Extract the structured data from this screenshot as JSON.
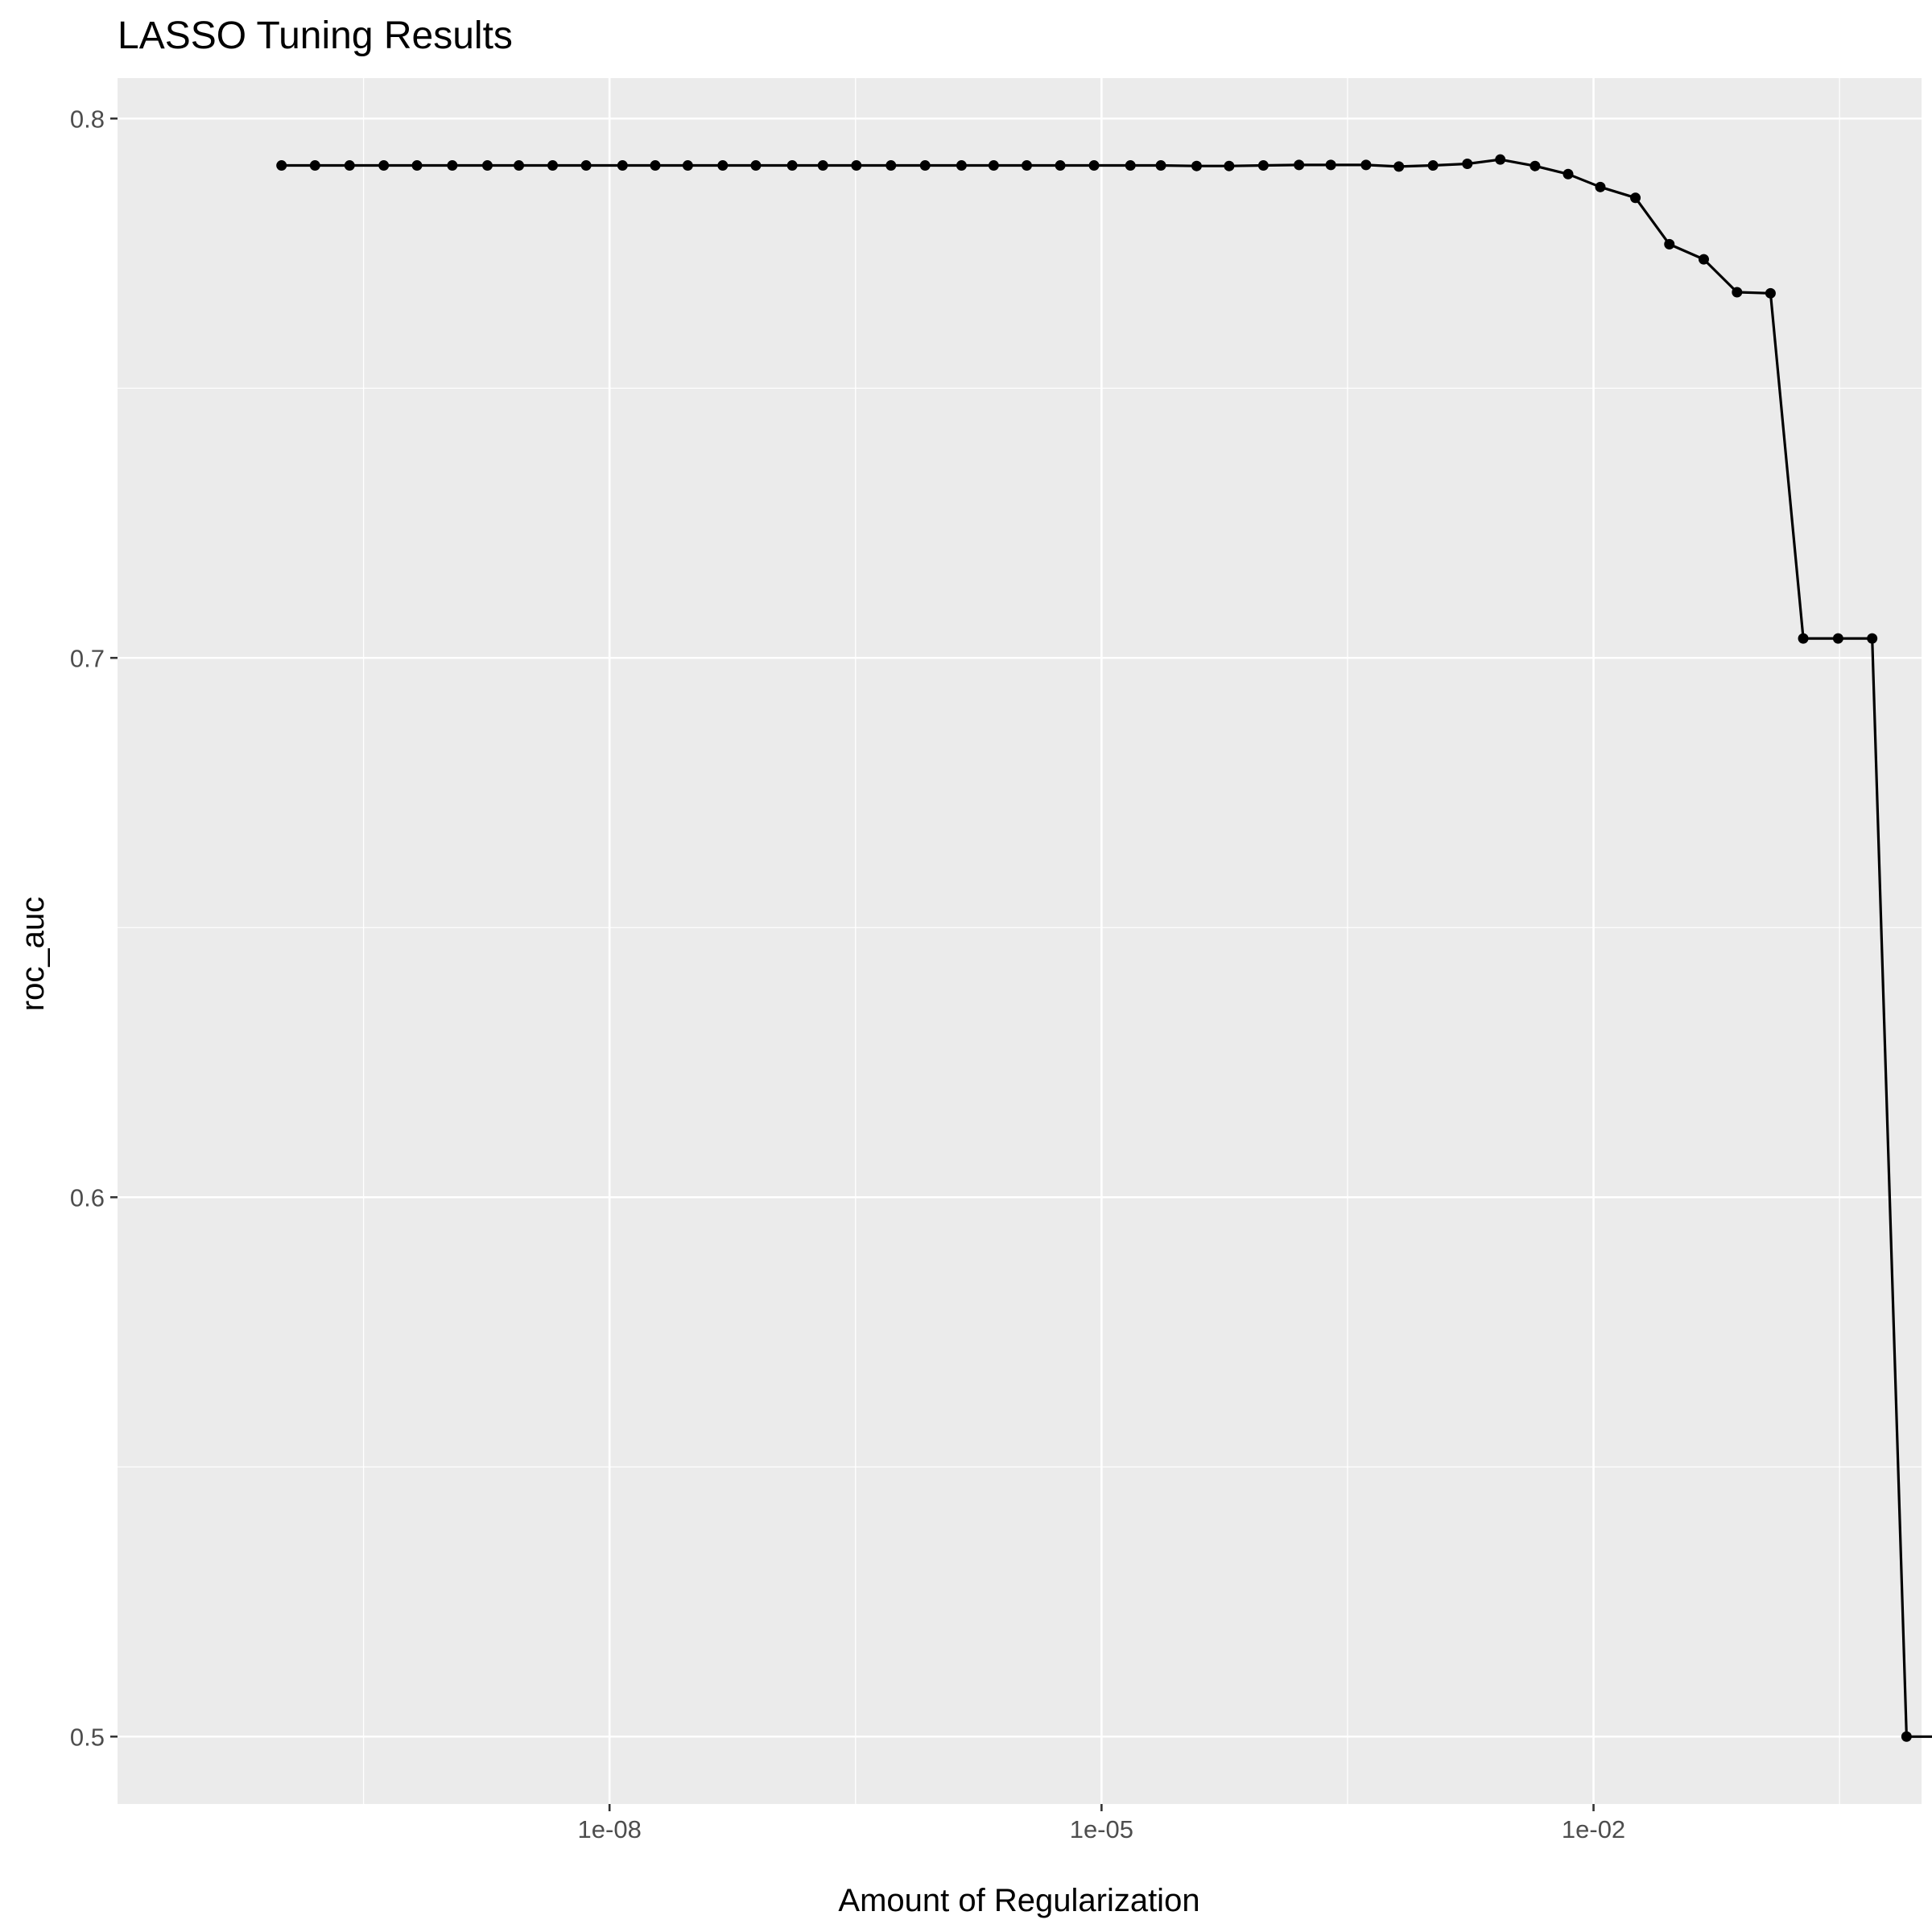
{
  "chart_data": {
    "type": "line",
    "title": "LASSO Tuning Results",
    "xlabel": "Amount of Regularization",
    "ylabel": "roc_auc",
    "x_scale": "log10",
    "xlim": [
      1e-11,
      1
    ],
    "ylim": [
      0.4875,
      0.8075
    ],
    "x_ticks": [
      {
        "value": 1e-08,
        "label": "1e-08"
      },
      {
        "value": 1e-05,
        "label": "1e-05"
      },
      {
        "value": 0.01,
        "label": "1e-02"
      }
    ],
    "y_ticks": [
      {
        "value": 0.5,
        "label": "0.5"
      },
      {
        "value": 0.6,
        "label": "0.6"
      },
      {
        "value": 0.7,
        "label": "0.7"
      },
      {
        "value": 0.8,
        "label": "0.8"
      }
    ],
    "grid": true,
    "background": "#ebebeb",
    "series": [
      {
        "color": "#000000",
        "x": [
          1e-10,
          1.6e-10,
          2.6e-10,
          4.2e-10,
          6.7e-10,
          1.1e-09,
          1.8e-09,
          2.8e-09,
          4.5e-09,
          7.2e-09,
          1.2e-08,
          1.9e-08,
          3e-08,
          4.9e-08,
          7.8e-08,
          1.3e-07,
          2e-07,
          3.2e-07,
          5.2e-07,
          8.4e-07,
          1.4e-06,
          2.2e-06,
          3.5e-06,
          5.6e-06,
          9e-06,
          1.5e-05,
          2.3e-05,
          3.8e-05,
          6e-05,
          9.7e-05,
          0.00016,
          0.00025,
          0.00041,
          0.00065,
          0.00105,
          0.0017,
          0.0027,
          0.0044,
          0.007,
          0.011,
          0.018,
          0.029,
          0.047,
          0.075,
          0.12,
          0.19,
          0.31,
          0.5,
          0.81,
          1.3
        ],
        "y": [
          0.7913,
          0.7913,
          0.7913,
          0.7913,
          0.7913,
          0.7913,
          0.7913,
          0.7913,
          0.7913,
          0.7913,
          0.7913,
          0.7913,
          0.7913,
          0.7913,
          0.7913,
          0.7913,
          0.7913,
          0.7913,
          0.7913,
          0.7913,
          0.7913,
          0.7913,
          0.7913,
          0.7913,
          0.7913,
          0.7913,
          0.7913,
          0.7912,
          0.7912,
          0.7913,
          0.7914,
          0.7914,
          0.7914,
          0.7911,
          0.7913,
          0.7916,
          0.7924,
          0.7912,
          0.7897,
          0.7873,
          0.7853,
          0.7767,
          0.7739,
          0.7678,
          0.7676,
          0.7036,
          0.7036,
          0.7036,
          0.5,
          0.5
        ]
      }
    ]
  }
}
